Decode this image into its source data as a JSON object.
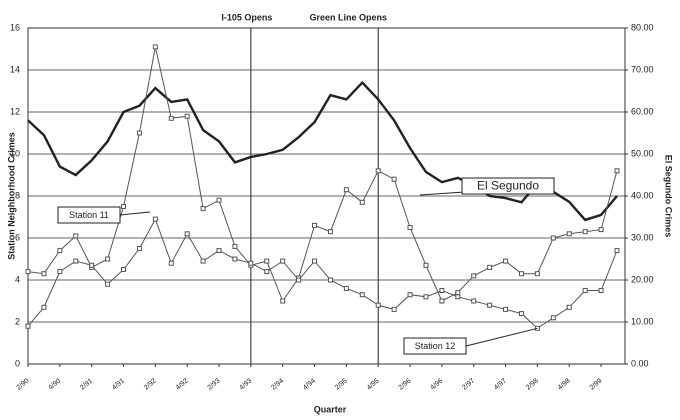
{
  "chart_data": {
    "type": "line",
    "annotations": [
      "I-105 Opens",
      "Green Line Opens"
    ],
    "annotation_x": [
      14,
      22
    ],
    "ylabel": "Station Neighborhood Crimes",
    "y2label": "El Segundo Crimes",
    "xlabel": "Quarter",
    "categories": [
      "2/90",
      null,
      "4/90",
      null,
      "2/91",
      null,
      "4/91",
      null,
      "2/92",
      null,
      "4/92",
      null,
      "2/93",
      null,
      "4/93",
      null,
      "2/94",
      null,
      "4/94",
      null,
      "2/95",
      null,
      "4/95",
      null,
      "2/96",
      null,
      "4/96",
      null,
      "2/97",
      null,
      "4/97",
      null,
      "2/98",
      null,
      "4/98",
      null,
      "2/99",
      null
    ],
    "series": [
      {
        "name": "El Segundo",
        "color": "#222222",
        "axis": "y2",
        "values": [
          58,
          54.5,
          47,
          45,
          48.5,
          53,
          60,
          61.5,
          65.7,
          62.4,
          63,
          55.7,
          53,
          48,
          49.3,
          50,
          51,
          54,
          57.6,
          64,
          63,
          67,
          63,
          58,
          51.4,
          45.7,
          43.3,
          44.3,
          42.6,
          40,
          39.5,
          38.5,
          43,
          41,
          38.6,
          34.3,
          35.5,
          40
        ]
      },
      {
        "name": "Station 11",
        "color": "#555555",
        "values": [
          4.4,
          4.3,
          5.4,
          6.1,
          4.6,
          5.0,
          7.5,
          11.0,
          15.1,
          11.7,
          11.8,
          7.4,
          7.8,
          5.6,
          4.7,
          4.9,
          3.0,
          4.1,
          6.6,
          6.3,
          8.3,
          7.7,
          9.2,
          8.8,
          6.5,
          4.7,
          3.0,
          3.4,
          4.2,
          4.6,
          4.9,
          4.3,
          4.3,
          6.0,
          6.2,
          6.3,
          6.4,
          9.2
        ]
      },
      {
        "name": "Station 12",
        "color": "#555555",
        "values": [
          1.8,
          2.7,
          4.4,
          4.9,
          4.7,
          3.8,
          4.5,
          5.5,
          6.9,
          4.8,
          6.2,
          4.9,
          5.4,
          5.0,
          4.8,
          4.4,
          4.9,
          4.0,
          4.9,
          4.0,
          3.6,
          3.3,
          2.8,
          2.6,
          3.3,
          3.2,
          3.5,
          3.2,
          3.0,
          2.8,
          2.6,
          2.4,
          1.7,
          2.2,
          2.7,
          3.5,
          3.5,
          5.4
        ]
      }
    ],
    "ylim": [
      0,
      16
    ],
    "yticks": [
      0,
      2,
      4,
      6,
      8,
      10,
      12,
      14,
      16
    ],
    "y2lim": [
      0,
      80
    ],
    "y2ticks": [
      {
        "value": 0,
        "label": "0.00"
      },
      {
        "value": 10,
        "label": "10.00"
      },
      {
        "value": 20,
        "label": "20.00"
      },
      {
        "value": 30,
        "label": "30.00"
      },
      {
        "value": 40,
        "label": "40.00"
      },
      {
        "value": 50,
        "label": "50.00"
      },
      {
        "value": 60,
        "label": "60.00"
      },
      {
        "value": 70,
        "label": "70.00"
      },
      {
        "value": 80,
        "label": "80.00"
      }
    ],
    "grid": true
  }
}
